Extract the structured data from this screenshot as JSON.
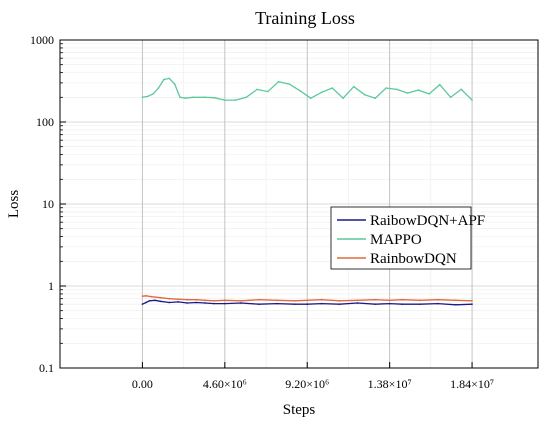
{
  "chart_data": {
    "type": "line",
    "title": "Training Loss",
    "xlabel": "Steps",
    "ylabel": "Loss",
    "yscale": "log",
    "xlim": [
      -4600000,
      22080000
    ],
    "ylim": [
      0.1,
      1000
    ],
    "x_ticks": [
      0,
      4600000,
      9200000,
      13800000,
      18400000
    ],
    "x_tick_labels": [
      "0.00",
      "4.60×10⁶",
      "9.20×10⁶",
      "1.38×10⁷",
      "1.84×10⁷"
    ],
    "y_ticks": [
      0.1,
      1,
      10,
      100,
      1000
    ],
    "y_tick_labels": [
      "0.1",
      "1",
      "10",
      "100",
      "1000"
    ],
    "grid": true,
    "legend_position": "center-right",
    "series": [
      {
        "name": "RaibowDQN+APF",
        "color": "#1a1a8c",
        "x": [
          0,
          200000,
          400000,
          700000,
          1000000,
          1500000,
          2000000,
          2500000,
          3000000,
          3500000,
          4000000,
          4600000,
          5500000,
          6500000,
          7500000,
          8500000,
          9200000,
          10000000,
          11000000,
          12000000,
          13000000,
          13800000,
          14500000,
          15500000,
          16500000,
          17500000,
          18400000
        ],
        "y": [
          0.6,
          0.63,
          0.66,
          0.67,
          0.65,
          0.63,
          0.64,
          0.62,
          0.63,
          0.62,
          0.61,
          0.61,
          0.62,
          0.6,
          0.61,
          0.6,
          0.6,
          0.61,
          0.6,
          0.62,
          0.6,
          0.61,
          0.6,
          0.6,
          0.61,
          0.59,
          0.6
        ]
      },
      {
        "name": "MAPPO",
        "color": "#5cc99a",
        "x": [
          0,
          300000,
          600000,
          900000,
          1200000,
          1500000,
          1800000,
          2100000,
          2400000,
          2800000,
          3500000,
          4000000,
          4600000,
          5200000,
          5800000,
          6400000,
          7000000,
          7600000,
          8200000,
          8800000,
          9400000,
          10000000,
          10600000,
          11200000,
          11800000,
          12400000,
          13000000,
          13600000,
          14200000,
          14800000,
          15400000,
          16000000,
          16600000,
          17200000,
          17800000,
          18400000
        ],
        "y": [
          200,
          205,
          220,
          260,
          330,
          340,
          290,
          200,
          195,
          200,
          200,
          198,
          185,
          185,
          200,
          250,
          235,
          310,
          290,
          240,
          195,
          230,
          260,
          195,
          270,
          215,
          195,
          260,
          250,
          225,
          245,
          220,
          285,
          200,
          250,
          185
        ]
      },
      {
        "name": "RainbowDQN",
        "color": "#e06a3a",
        "x": [
          0,
          200000,
          500000,
          1000000,
          1500000,
          2000000,
          2500000,
          3000000,
          3500000,
          4000000,
          4600000,
          5500000,
          6500000,
          7500000,
          8500000,
          9200000,
          10000000,
          11000000,
          12000000,
          13000000,
          13800000,
          14500000,
          15500000,
          16500000,
          17500000,
          18400000
        ],
        "y": [
          0.75,
          0.76,
          0.74,
          0.72,
          0.7,
          0.69,
          0.68,
          0.68,
          0.67,
          0.66,
          0.67,
          0.66,
          0.68,
          0.67,
          0.66,
          0.67,
          0.68,
          0.66,
          0.67,
          0.68,
          0.67,
          0.68,
          0.67,
          0.68,
          0.67,
          0.66
        ]
      }
    ]
  }
}
